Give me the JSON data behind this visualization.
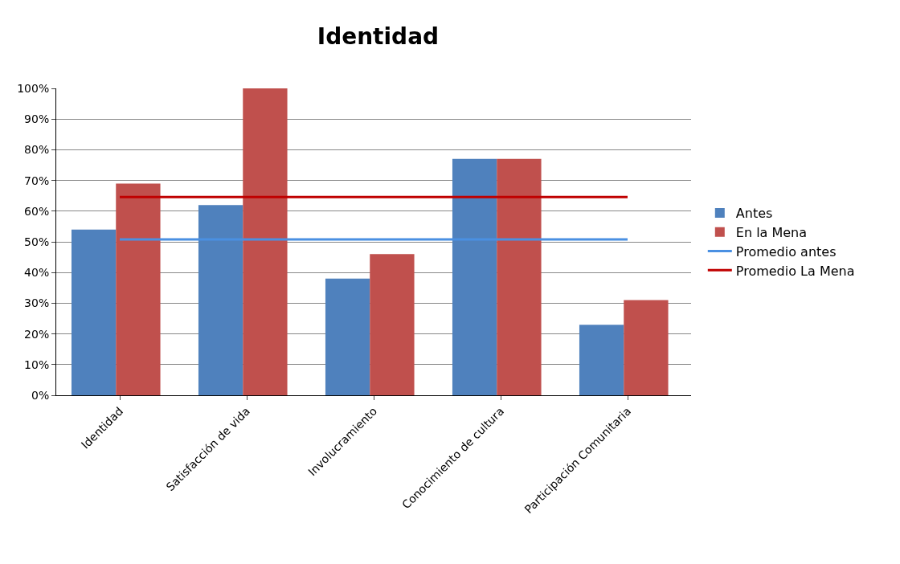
{
  "chart_data": {
    "type": "bar",
    "title": "Identidad",
    "categories": [
      "Identidad",
      "Satisfacción de vida",
      "Involucramiento",
      "Conocimiento de cultura",
      "Participación Comunitaria"
    ],
    "series": [
      {
        "name": "Antes",
        "color": "#4f81bd",
        "values": [
          54,
          62,
          38,
          77,
          23
        ]
      },
      {
        "name": "En la Mena",
        "color": "#c0504d",
        "values": [
          69,
          100,
          46,
          77,
          31
        ]
      },
      {
        "name": "Promedio antes",
        "type": "line",
        "color": "#4a90e2",
        "values": [
          50.8,
          50.8,
          50.8,
          50.8,
          50.8
        ]
      },
      {
        "name": "Promedio La Mena",
        "type": "line",
        "color": "#c00000",
        "values": [
          64.6,
          64.6,
          64.6,
          64.6,
          64.6
        ]
      }
    ],
    "ylim": [
      0,
      100
    ],
    "yticks": [
      {
        "value": 0,
        "label": "0%"
      },
      {
        "value": 10,
        "label": "10%"
      },
      {
        "value": 20,
        "label": "20%"
      },
      {
        "value": 30,
        "label": "30%"
      },
      {
        "value": 40,
        "label": "40%"
      },
      {
        "value": 50,
        "label": "50%"
      },
      {
        "value": 60,
        "label": "60%"
      },
      {
        "value": 70,
        "label": "70%"
      },
      {
        "value": 80,
        "label": "80%"
      },
      {
        "value": 90,
        "label": "90%"
      },
      {
        "value": 100,
        "label": "100%"
      }
    ],
    "grid": "y",
    "legend": "right",
    "marker": "none",
    "line_style": "solid"
  }
}
